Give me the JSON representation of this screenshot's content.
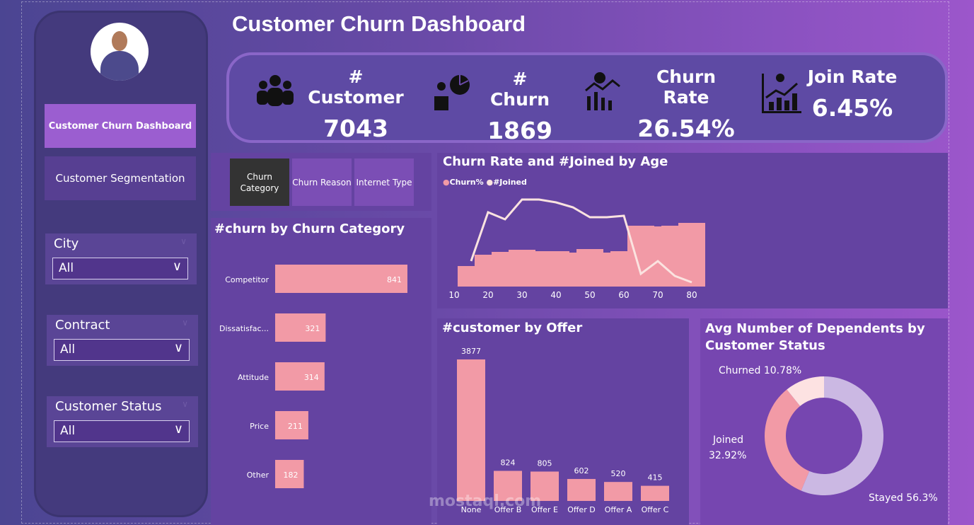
{
  "title": "Customer Churn Dashboard",
  "nav": {
    "items": [
      {
        "label": "Customer Churn Dashboard",
        "active": true
      },
      {
        "label": "Customer Segmentation",
        "active": false
      }
    ]
  },
  "filters": [
    {
      "label": "City",
      "value": "All"
    },
    {
      "label": "Contract",
      "value": "All"
    },
    {
      "label": "Customer Status",
      "value": "All"
    }
  ],
  "kpis": [
    {
      "label": "# Customer",
      "value": "7043",
      "icon": "people-group-icon"
    },
    {
      "label": "# Churn",
      "value": "1869",
      "icon": "churn-pie-box-icon"
    },
    {
      "label": "Churn Rate",
      "value": "26.54%",
      "icon": "person-chart-icon"
    },
    {
      "label": "Join Rate",
      "value": "6.45%",
      "icon": "growth-chart-icon"
    }
  ],
  "tabs": [
    {
      "label": "Churn Category",
      "active": true
    },
    {
      "label": "Churn Reason",
      "active": false
    },
    {
      "label": "Internet Type",
      "active": false
    }
  ],
  "colors": {
    "bar": "#f29aa6",
    "line": "#fbe3e0",
    "stayed": "#cbb8e3",
    "joined": "#f29aa6",
    "churned": "#fde2e2",
    "active_tab": "#333333"
  },
  "watermark": "mostaql.com",
  "chart_data": [
    {
      "type": "bar",
      "orientation": "horizontal",
      "title": "#churn by Churn Category",
      "categories": [
        "Competitor",
        "Dissatisfac...",
        "Attitude",
        "Price",
        "Other"
      ],
      "values": [
        841,
        321,
        314,
        211,
        182
      ]
    },
    {
      "type": "bar+line",
      "title": "Churn Rate and #Joined by Age",
      "legend": [
        "Churn%",
        "#Joined"
      ],
      "legend_position": "top-left",
      "x_ticks": [
        "10",
        "20",
        "30",
        "40",
        "50",
        "60",
        "70",
        "80"
      ],
      "x": [
        15,
        20,
        25,
        30,
        35,
        40,
        45,
        50,
        55,
        60,
        65,
        70,
        75,
        80
      ],
      "series": [
        {
          "name": "Churn%",
          "type": "bar",
          "values": [
            29,
            45,
            49,
            52,
            50,
            50,
            48,
            53,
            48,
            50,
            86,
            85,
            86,
            90
          ]
        },
        {
          "name": "#Joined",
          "type": "line",
          "values": [
            36,
            105,
            95,
            123,
            123,
            119,
            112,
            98,
            98,
            100,
            18,
            36,
            15,
            6
          ]
        }
      ]
    },
    {
      "type": "bar",
      "title": "#customer by Offer",
      "categories": [
        "None",
        "Offer B",
        "Offer E",
        "Offer D",
        "Offer A",
        "Offer C"
      ],
      "values": [
        3877,
        824,
        805,
        602,
        520,
        415
      ]
    },
    {
      "type": "pie",
      "donut": true,
      "title": "Avg Number of Dependents by Customer Status",
      "categories": [
        "Stayed",
        "Joined",
        "Churned"
      ],
      "values": [
        56.3,
        32.92,
        10.78
      ],
      "labels": [
        "Stayed 56.3%",
        "Joined",
        "32.92%",
        "Churned 10.78%"
      ]
    }
  ]
}
